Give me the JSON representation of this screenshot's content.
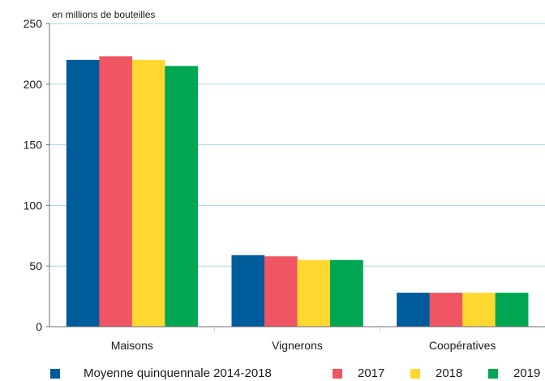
{
  "chart_data": {
    "type": "bar",
    "unit_note": "en millions de bouteilles",
    "categories": [
      "Maisons",
      "Vignerons",
      "Coopératives"
    ],
    "series": [
      {
        "name": "Moyenne quinquennale 2014-2018",
        "color": "#005b9a",
        "values": [
          220,
          59,
          28
        ]
      },
      {
        "name": "2017",
        "color": "#ef5563",
        "values": [
          223,
          58,
          28
        ]
      },
      {
        "name": "2018",
        "color": "#ffd731",
        "values": [
          220,
          55,
          28
        ]
      },
      {
        "name": "2019",
        "color": "#00a651",
        "values": [
          215,
          55,
          28
        ]
      }
    ],
    "ylim": [
      0,
      250
    ],
    "yticks": [
      "0",
      "50",
      "100",
      "150",
      "200",
      "250"
    ],
    "grid": true,
    "grid_color": "#a8d4ea",
    "legend_position": "bottom"
  }
}
